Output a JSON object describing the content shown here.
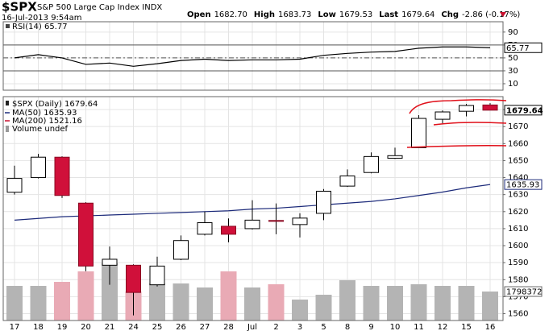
{
  "header": {
    "symbol": "$SPX",
    "name": "S&P 500 Large Cap Index",
    "exchange": "INDX",
    "datetime": "16-Jul-2013 9:54am",
    "quote": [
      {
        "label": "Open",
        "value": "1682.70"
      },
      {
        "label": "High",
        "value": "1683.73"
      },
      {
        "label": "Low",
        "value": "1679.53"
      },
      {
        "label": "Last",
        "value": "1679.64"
      },
      {
        "label": "Chg",
        "value": "-2.86 (-0.17%)"
      }
    ]
  },
  "chart_data": [
    {
      "type": "line",
      "title": "RSI(14) 65.77",
      "color": "#000000",
      "values": [
        50,
        55,
        50,
        40,
        42,
        37,
        41,
        46,
        48,
        46,
        47,
        47,
        48,
        54,
        57,
        59,
        60,
        65,
        67,
        67,
        65.77
      ],
      "ylim": [
        0,
        106
      ],
      "yticks": [
        90,
        70,
        50,
        30,
        10
      ],
      "grid": true,
      "reference_lines": [
        {
          "value": 70,
          "style": "solid"
        },
        {
          "value": 50,
          "style": "dashed"
        },
        {
          "value": 30,
          "style": "solid"
        }
      ]
    },
    {
      "type": "candlestick",
      "categories": [
        "17",
        "18",
        "19",
        "20",
        "21",
        "24",
        "25",
        "26",
        "27",
        "28",
        "Jul",
        "2",
        "3",
        "5",
        "8",
        "9",
        "10",
        "11",
        "12",
        "15",
        "16"
      ],
      "open": [
        1631.4,
        1640,
        1652,
        1625,
        1588.5,
        1588.5,
        1577,
        1592,
        1606.7,
        1611.4,
        1610,
        1614.8,
        1612.4,
        1619,
        1635,
        1643,
        1651.4,
        1657.6,
        1674.3,
        1679,
        1682.7
      ],
      "high": [
        1647,
        1654,
        1652.5,
        1625.5,
        1599.5,
        1589,
        1593.5,
        1606,
        1620,
        1616,
        1626.7,
        1624.8,
        1619,
        1633.3,
        1644.8,
        1654.8,
        1657.6,
        1676.7,
        1679.5,
        1683.3,
        1683.73
      ],
      "low": [
        1630,
        1639.5,
        1628,
        1585,
        1577,
        1559,
        1576,
        1591.5,
        1606,
        1602,
        1609.5,
        1606.7,
        1604.8,
        1615,
        1634.5,
        1642.5,
        1651,
        1657.6,
        1672,
        1676,
        1679.53
      ],
      "close": [
        1639.5,
        1652,
        1629.5,
        1588,
        1592,
        1572.5,
        1588,
        1603,
        1613.5,
        1606.7,
        1615,
        1614.3,
        1616.2,
        1632,
        1641,
        1652.4,
        1652.9,
        1674.8,
        1678.6,
        1682.4,
        1679.64
      ],
      "up_color": "#ffffff",
      "down_color": "#d0103a",
      "ylim": [
        1556,
        1687.6
      ],
      "yticks": [
        1680,
        1670,
        1660,
        1650,
        1640,
        1630,
        1620,
        1610,
        1600,
        1590,
        1580,
        1570,
        1560
      ],
      "grid": true,
      "price_label": "$SPX (Daily) 1679.64",
      "series": [
        {
          "name": "MA(50) 1635.93",
          "color": "#1c2a7a",
          "values": [
            1615,
            1616,
            1617,
            1617.5,
            1618,
            1618.5,
            1619,
            1619.5,
            1620,
            1620.5,
            1621.5,
            1622,
            1623,
            1624,
            1625,
            1626,
            1627.5,
            1629.5,
            1631.5,
            1634,
            1635.93
          ]
        },
        {
          "name": "MA(200) 1521.16",
          "color": "#c8102e"
        }
      ],
      "volume": {
        "name": "Volume undef",
        "color": "#9a9a9a",
        "values": [
          2150000,
          2150000,
          2400000,
          3050000,
          3550000,
          1800000,
          2300000,
          2300000,
          2050000,
          3050000,
          2050000,
          2250000,
          1300000,
          1600000,
          2500000,
          2150000,
          2150000,
          2250000,
          2150000,
          2150000,
          1798372
        ],
        "colors": [
          "#b4b4b4",
          "#b4b4b4",
          "#e9aab5",
          "#e9aab5",
          "#b4b4b4",
          "#e9aab5",
          "#b4b4b4",
          "#b4b4b4",
          "#b4b4b4",
          "#e9aab5",
          "#b4b4b4",
          "#e9aab5",
          "#b4b4b4",
          "#b4b4b4",
          "#b4b4b4",
          "#b4b4b4",
          "#b4b4b4",
          "#b4b4b4",
          "#b4b4b4",
          "#b4b4b4",
          "#b4b4b4"
        ],
        "y2lim": [
          0,
          13900000
        ]
      }
    }
  ]
}
